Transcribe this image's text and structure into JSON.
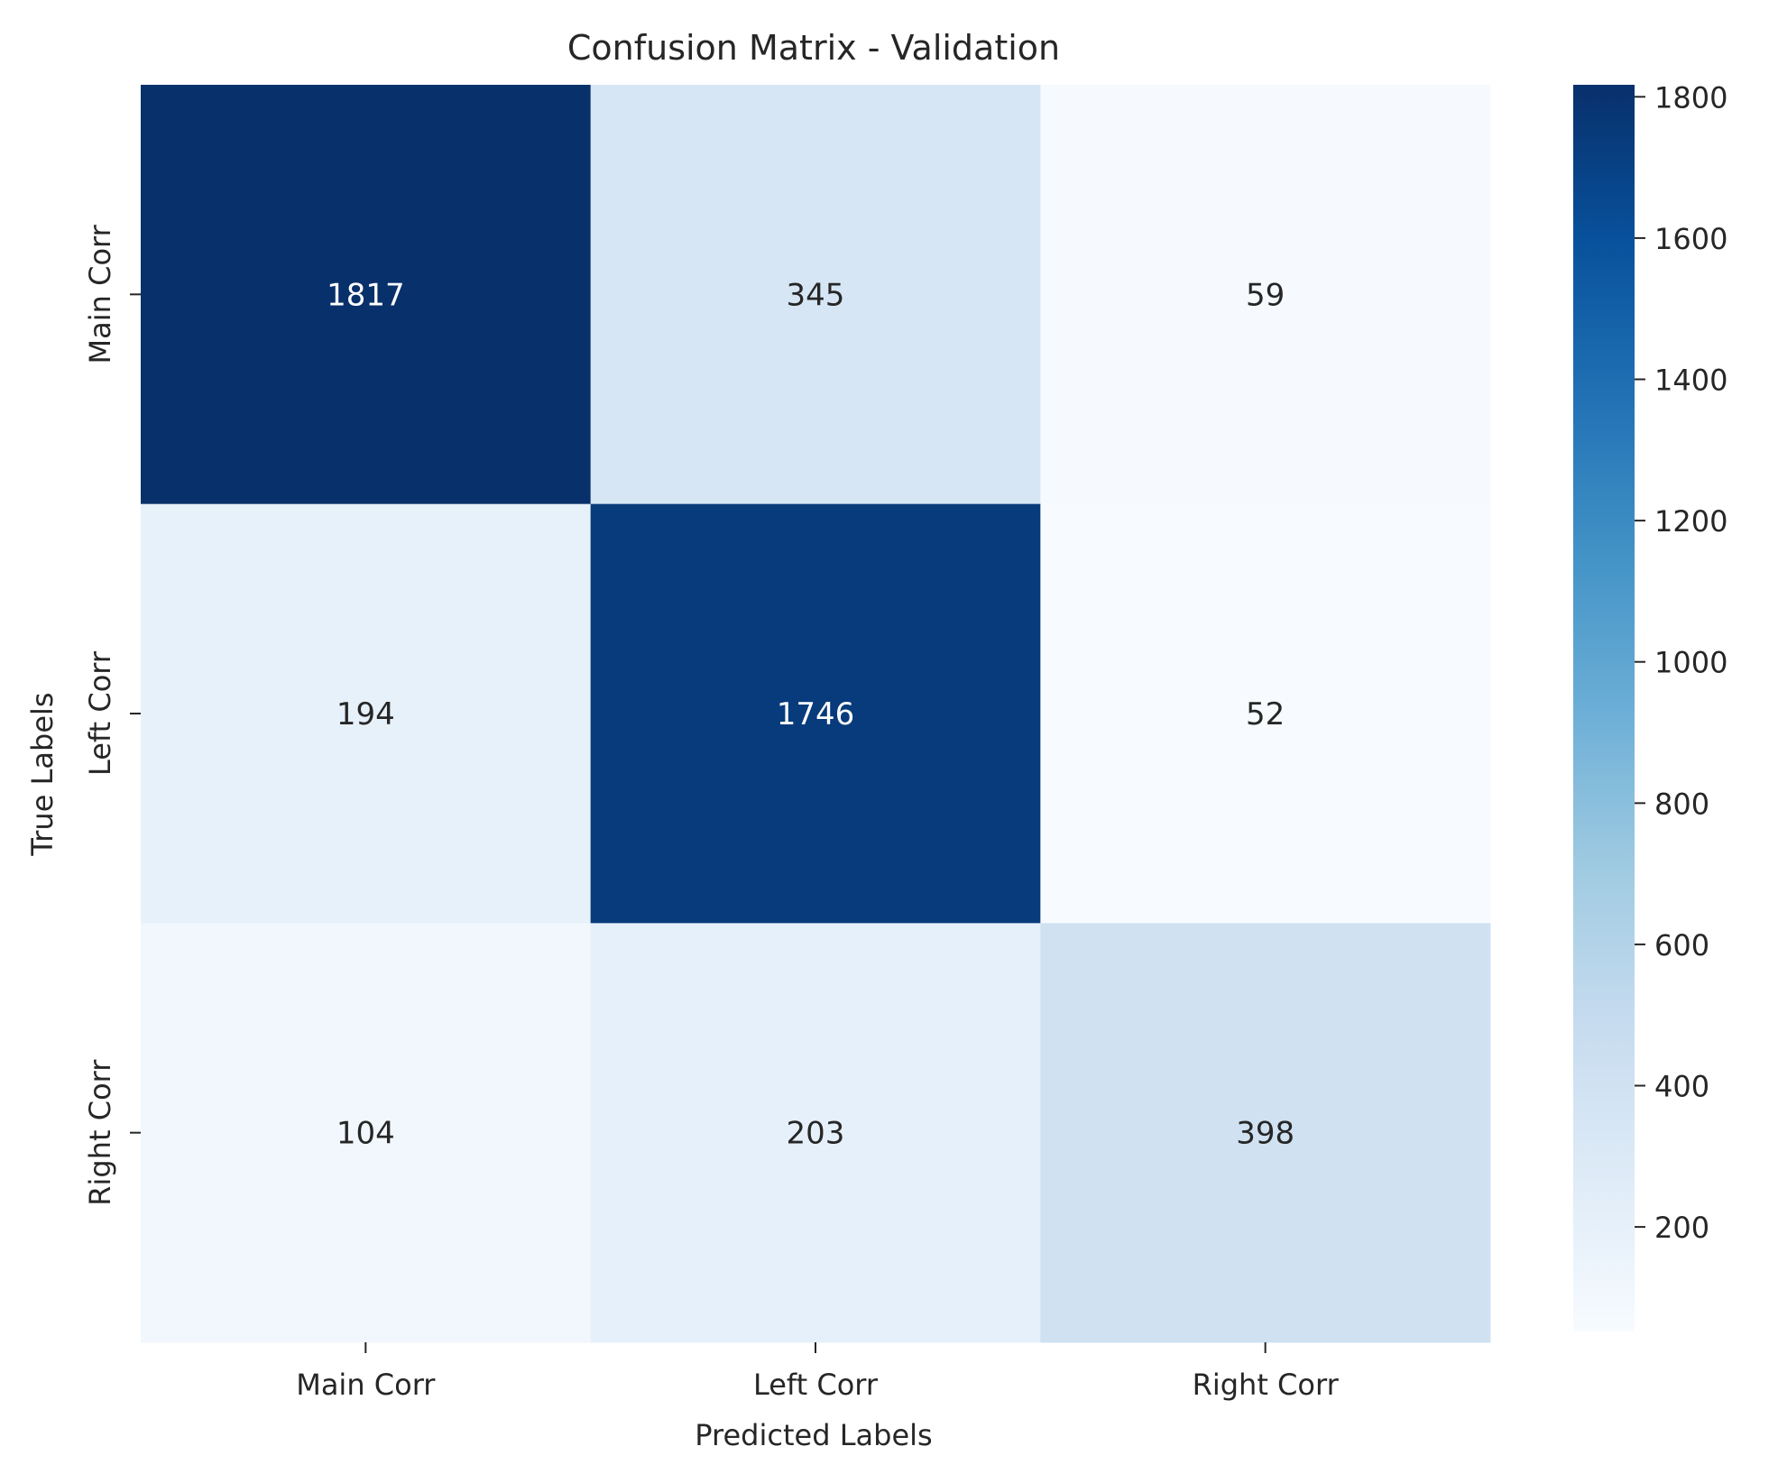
{
  "chart_data": {
    "type": "heatmap",
    "title": "Confusion Matrix - Validation",
    "xlabel": "Predicted Labels",
    "ylabel": "True Labels",
    "x_categories": [
      "Main Corr",
      "Left Corr",
      "Right Corr"
    ],
    "y_categories": [
      "Main Corr",
      "Left Corr",
      "Right Corr"
    ],
    "values": [
      [
        1817,
        345,
        59
      ],
      [
        194,
        1746,
        52
      ],
      [
        104,
        203,
        398
      ]
    ],
    "colormap": "Blues",
    "color_range": [
      52,
      1817
    ],
    "colorbar_ticks": [
      200,
      400,
      600,
      800,
      1000,
      1200,
      1400,
      1600,
      1800
    ],
    "colorbar_ticks_text": [
      "200",
      "400",
      "600",
      "800",
      "1000",
      "1200",
      "1400",
      "1600",
      "1800"
    ],
    "text_color_dark": "#262626",
    "text_color_light": "#ffffff"
  }
}
